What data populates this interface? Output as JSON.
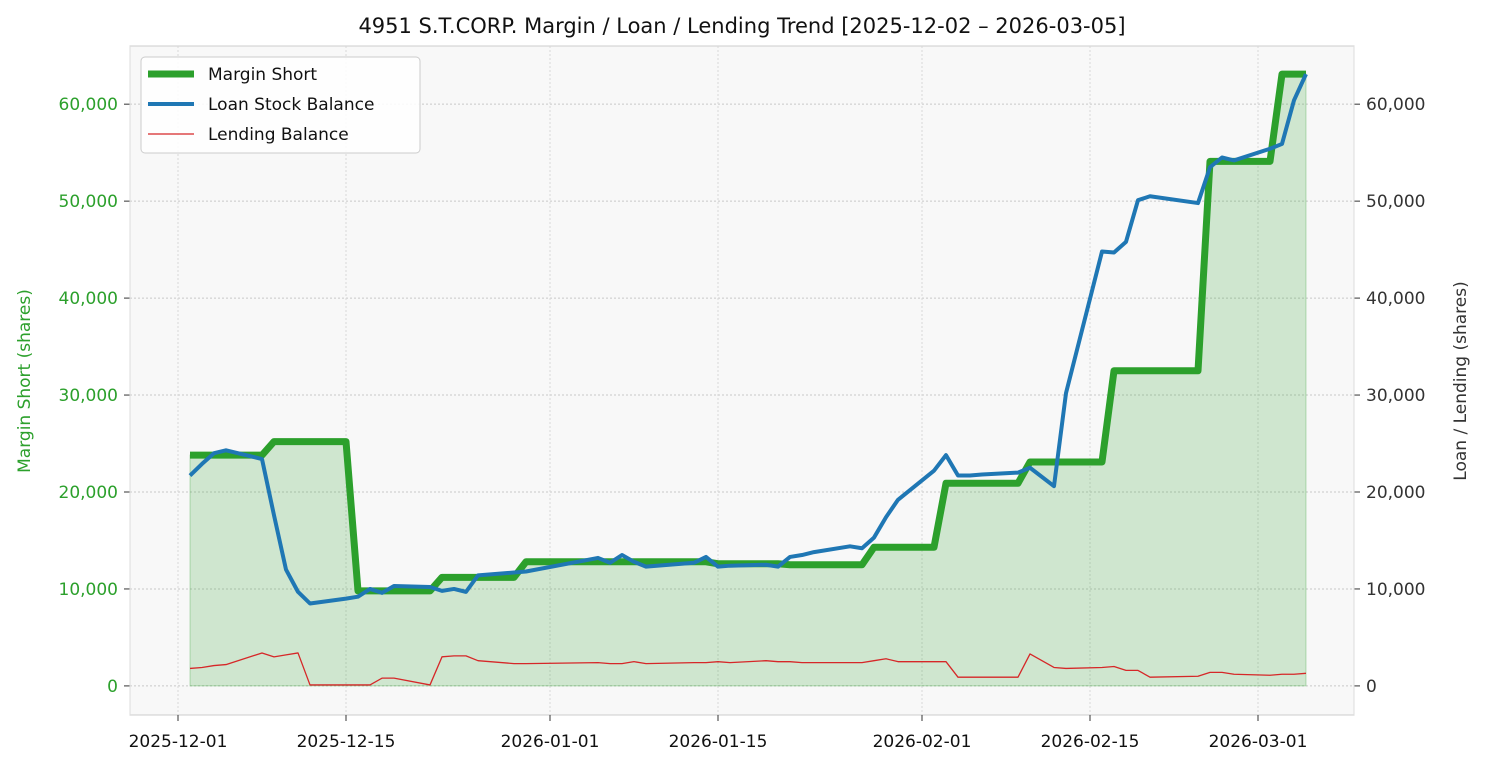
{
  "chart_data": {
    "type": "line",
    "title": "4951 S.T.CORP. Margin / Loan / Lending Trend [2025-12-02 – 2026-03-05]",
    "ylabel_left": "Margin Short (shares)",
    "ylabel_right": "Loan / Lending (shares)",
    "xlabel": "",
    "x_ticks": [
      "2025-12-01",
      "2025-12-15",
      "2026-01-01",
      "2026-01-15",
      "2026-02-01",
      "2026-02-15",
      "2026-03-01"
    ],
    "y_left_ticks": [
      "0",
      "10,000",
      "20,000",
      "30,000",
      "40,000",
      "50,000",
      "60,000"
    ],
    "y_right_ticks": [
      "0",
      "10,000",
      "20,000",
      "30,000",
      "40,000",
      "50,000",
      "60,000"
    ],
    "xlim": [
      "2025-11-27",
      "2026-03-09"
    ],
    "ylim_left": [
      -3000,
      66000
    ],
    "ylim_right": [
      -3000,
      66000
    ],
    "grid": true,
    "legend_position": "top-left",
    "colors": {
      "margin": "#2ca02c",
      "margin_fill": "#2ca02c",
      "loan": "#1f77b4",
      "lending": "#d62728",
      "left_axis_text": "#2ca02c",
      "right_axis_text": "#333333",
      "plot_bg": "#f8f8f8"
    },
    "series": [
      {
        "name": "Margin Short",
        "axis": "left",
        "points": [
          [
            "2025-12-02",
            23800
          ],
          [
            "2025-12-03",
            23800
          ],
          [
            "2025-12-04",
            23800
          ],
          [
            "2025-12-05",
            23800
          ],
          [
            "2025-12-08",
            23800
          ],
          [
            "2025-12-09",
            25200
          ],
          [
            "2025-12-10",
            25200
          ],
          [
            "2025-12-11",
            25200
          ],
          [
            "2025-12-12",
            25200
          ],
          [
            "2025-12-15",
            25200
          ],
          [
            "2025-12-16",
            9800
          ],
          [
            "2025-12-17",
            9800
          ],
          [
            "2025-12-18",
            9800
          ],
          [
            "2025-12-19",
            9800
          ],
          [
            "2025-12-22",
            9800
          ],
          [
            "2025-12-23",
            11200
          ],
          [
            "2025-12-24",
            11200
          ],
          [
            "2025-12-25",
            11200
          ],
          [
            "2025-12-26",
            11200
          ],
          [
            "2025-12-29",
            11200
          ],
          [
            "2025-12-30",
            12800
          ],
          [
            "2026-01-05",
            12800
          ],
          [
            "2026-01-06",
            12800
          ],
          [
            "2026-01-07",
            12800
          ],
          [
            "2026-01-08",
            12800
          ],
          [
            "2026-01-09",
            12800
          ],
          [
            "2026-01-13",
            12800
          ],
          [
            "2026-01-14",
            12800
          ],
          [
            "2026-01-15",
            12600
          ],
          [
            "2026-01-16",
            12600
          ],
          [
            "2026-01-19",
            12600
          ],
          [
            "2026-01-20",
            12600
          ],
          [
            "2026-01-21",
            12500
          ],
          [
            "2026-01-22",
            12500
          ],
          [
            "2026-01-23",
            12500
          ],
          [
            "2026-01-26",
            12500
          ],
          [
            "2026-01-27",
            12500
          ],
          [
            "2026-01-28",
            14300
          ],
          [
            "2026-01-29",
            14300
          ],
          [
            "2026-01-30",
            14300
          ],
          [
            "2026-02-02",
            14300
          ],
          [
            "2026-02-03",
            20900
          ],
          [
            "2026-02-04",
            20900
          ],
          [
            "2026-02-05",
            20900
          ],
          [
            "2026-02-06",
            20900
          ],
          [
            "2026-02-09",
            20900
          ],
          [
            "2026-02-10",
            23100
          ],
          [
            "2026-02-12",
            23100
          ],
          [
            "2026-02-13",
            23100
          ],
          [
            "2026-02-16",
            23100
          ],
          [
            "2026-02-17",
            32500
          ],
          [
            "2026-02-18",
            32500
          ],
          [
            "2026-02-19",
            32500
          ],
          [
            "2026-02-20",
            32500
          ],
          [
            "2026-02-24",
            32500
          ],
          [
            "2026-02-25",
            54100
          ],
          [
            "2026-02-26",
            54100
          ],
          [
            "2026-02-27",
            54100
          ],
          [
            "2026-03-02",
            54100
          ],
          [
            "2026-03-03",
            63100
          ],
          [
            "2026-03-04",
            63100
          ],
          [
            "2026-03-05",
            63100
          ]
        ]
      },
      {
        "name": "Loan Stock Balance",
        "axis": "right",
        "points": [
          [
            "2025-12-02",
            21700
          ],
          [
            "2025-12-03",
            22900
          ],
          [
            "2025-12-04",
            24000
          ],
          [
            "2025-12-05",
            24300
          ],
          [
            "2025-12-08",
            23400
          ],
          [
            "2025-12-09",
            17600
          ],
          [
            "2025-12-10",
            12000
          ],
          [
            "2025-12-11",
            9700
          ],
          [
            "2025-12-12",
            8500
          ],
          [
            "2025-12-15",
            9000
          ],
          [
            "2025-12-16",
            9200
          ],
          [
            "2025-12-17",
            10000
          ],
          [
            "2025-12-18",
            9600
          ],
          [
            "2025-12-19",
            10300
          ],
          [
            "2025-12-22",
            10200
          ],
          [
            "2025-12-23",
            9800
          ],
          [
            "2025-12-24",
            10000
          ],
          [
            "2025-12-25",
            9700
          ],
          [
            "2025-12-26",
            11400
          ],
          [
            "2025-12-29",
            11700
          ],
          [
            "2025-12-30",
            11800
          ],
          [
            "2026-01-05",
            13200
          ],
          [
            "2026-01-06",
            12700
          ],
          [
            "2026-01-07",
            13500
          ],
          [
            "2026-01-08",
            12800
          ],
          [
            "2026-01-09",
            12300
          ],
          [
            "2026-01-13",
            12700
          ],
          [
            "2026-01-14",
            13300
          ],
          [
            "2026-01-15",
            12300
          ],
          [
            "2026-01-16",
            12400
          ],
          [
            "2026-01-19",
            12500
          ],
          [
            "2026-01-20",
            12300
          ],
          [
            "2026-01-21",
            13300
          ],
          [
            "2026-01-22",
            13500
          ],
          [
            "2026-01-23",
            13800
          ],
          [
            "2026-01-26",
            14400
          ],
          [
            "2026-01-27",
            14200
          ],
          [
            "2026-01-28",
            15300
          ],
          [
            "2026-01-29",
            17400
          ],
          [
            "2026-01-30",
            19200
          ],
          [
            "2026-02-02",
            22200
          ],
          [
            "2026-02-03",
            23800
          ],
          [
            "2026-02-04",
            21700
          ],
          [
            "2026-02-05",
            21700
          ],
          [
            "2026-02-06",
            21800
          ],
          [
            "2026-02-09",
            22000
          ],
          [
            "2026-02-10",
            22500
          ],
          [
            "2026-02-12",
            20600
          ],
          [
            "2026-02-13",
            30200
          ],
          [
            "2026-02-16",
            44800
          ],
          [
            "2026-02-17",
            44700
          ],
          [
            "2026-02-18",
            45800
          ],
          [
            "2026-02-19",
            50100
          ],
          [
            "2026-02-20",
            50500
          ],
          [
            "2026-02-24",
            49800
          ],
          [
            "2026-02-25",
            53500
          ],
          [
            "2026-02-26",
            54500
          ],
          [
            "2026-02-27",
            54200
          ],
          [
            "2026-03-02",
            55400
          ],
          [
            "2026-03-03",
            55900
          ],
          [
            "2026-03-04",
            60400
          ],
          [
            "2026-03-05",
            63100
          ]
        ]
      },
      {
        "name": "Lending Balance",
        "axis": "right",
        "points": [
          [
            "2025-12-02",
            1800
          ],
          [
            "2025-12-03",
            1900
          ],
          [
            "2025-12-04",
            2100
          ],
          [
            "2025-12-05",
            2200
          ],
          [
            "2025-12-08",
            3400
          ],
          [
            "2025-12-09",
            3000
          ],
          [
            "2025-12-10",
            3200
          ],
          [
            "2025-12-11",
            3400
          ],
          [
            "2025-12-12",
            100
          ],
          [
            "2025-12-15",
            100
          ],
          [
            "2025-12-16",
            100
          ],
          [
            "2025-12-17",
            100
          ],
          [
            "2025-12-18",
            800
          ],
          [
            "2025-12-19",
            800
          ],
          [
            "2025-12-22",
            100
          ],
          [
            "2025-12-23",
            3000
          ],
          [
            "2025-12-24",
            3100
          ],
          [
            "2025-12-25",
            3100
          ],
          [
            "2025-12-26",
            2600
          ],
          [
            "2025-12-29",
            2300
          ],
          [
            "2025-12-30",
            2300
          ],
          [
            "2026-01-05",
            2400
          ],
          [
            "2026-01-06",
            2300
          ],
          [
            "2026-01-07",
            2300
          ],
          [
            "2026-01-08",
            2500
          ],
          [
            "2026-01-09",
            2300
          ],
          [
            "2026-01-13",
            2400
          ],
          [
            "2026-01-14",
            2400
          ],
          [
            "2026-01-15",
            2500
          ],
          [
            "2026-01-16",
            2400
          ],
          [
            "2026-01-19",
            2600
          ],
          [
            "2026-01-20",
            2500
          ],
          [
            "2026-01-21",
            2500
          ],
          [
            "2026-01-22",
            2400
          ],
          [
            "2026-01-23",
            2400
          ],
          [
            "2026-01-26",
            2400
          ],
          [
            "2026-01-27",
            2400
          ],
          [
            "2026-01-28",
            2600
          ],
          [
            "2026-01-29",
            2800
          ],
          [
            "2026-01-30",
            2500
          ],
          [
            "2026-02-02",
            2500
          ],
          [
            "2026-02-03",
            2500
          ],
          [
            "2026-02-04",
            900
          ],
          [
            "2026-02-05",
            900
          ],
          [
            "2026-02-06",
            900
          ],
          [
            "2026-02-09",
            900
          ],
          [
            "2026-02-10",
            3300
          ],
          [
            "2026-02-12",
            1900
          ],
          [
            "2026-02-13",
            1800
          ],
          [
            "2026-02-16",
            1900
          ],
          [
            "2026-02-17",
            2000
          ],
          [
            "2026-02-18",
            1600
          ],
          [
            "2026-02-19",
            1600
          ],
          [
            "2026-02-20",
            900
          ],
          [
            "2026-02-24",
            1000
          ],
          [
            "2026-02-25",
            1400
          ],
          [
            "2026-02-26",
            1400
          ],
          [
            "2026-02-27",
            1200
          ],
          [
            "2026-03-02",
            1100
          ],
          [
            "2026-03-03",
            1200
          ],
          [
            "2026-03-04",
            1200
          ],
          [
            "2026-03-05",
            1300
          ]
        ]
      }
    ]
  }
}
